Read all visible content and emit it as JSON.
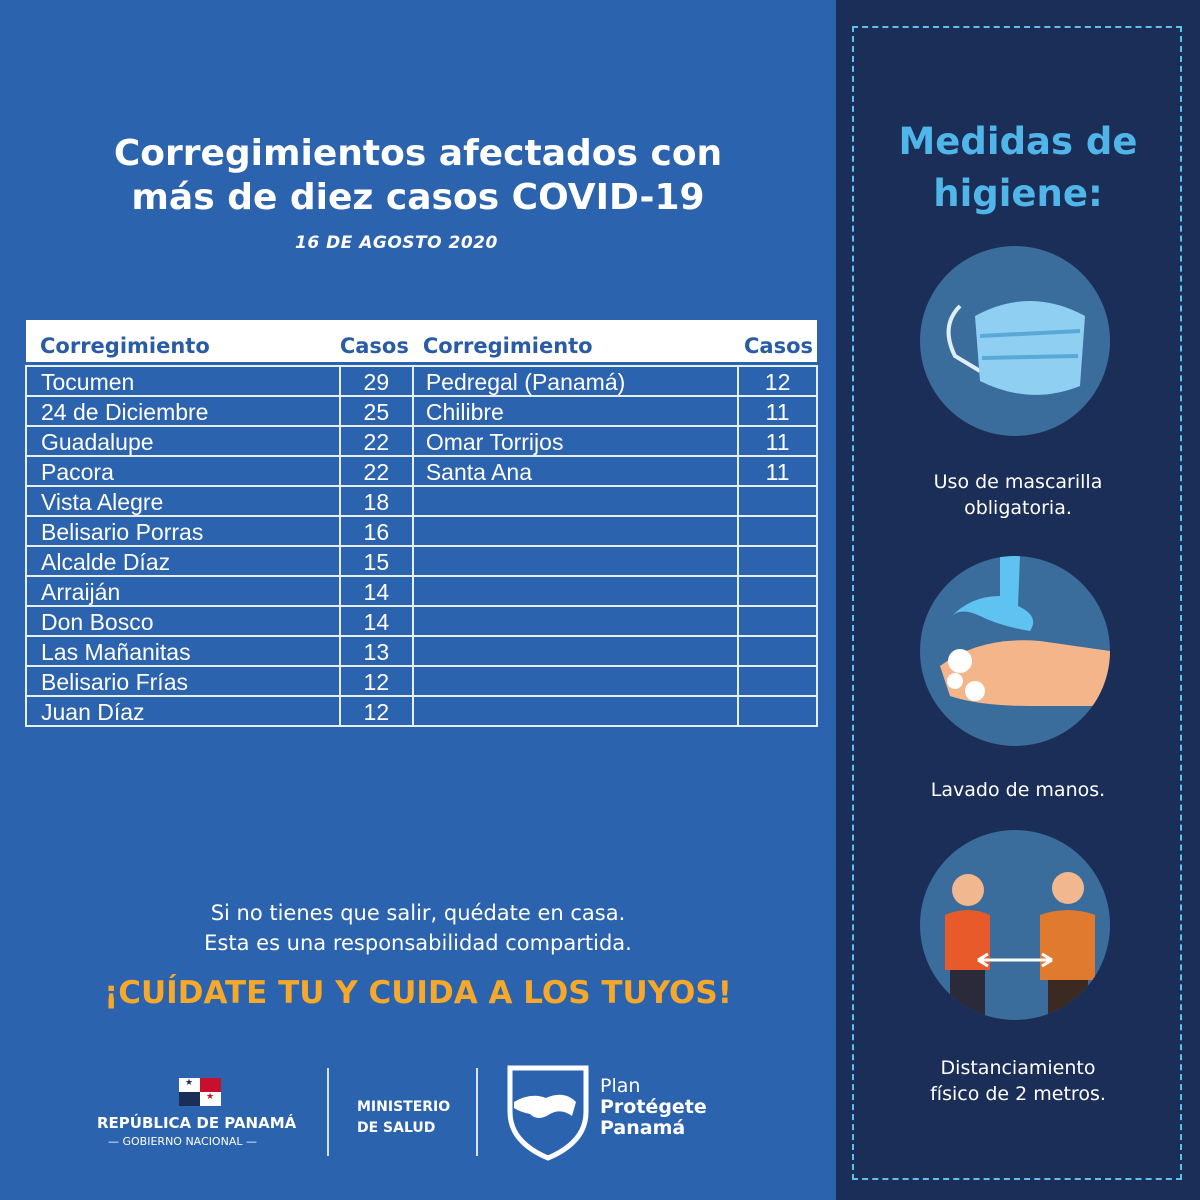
{
  "header": {
    "title_line1": "Corregimientos afectados con",
    "title_line2": "más de diez casos COVID-19",
    "date": "16 DE  AGOSTO  2020"
  },
  "table": {
    "headers": [
      "Corregimiento",
      "Casos",
      "Corregimiento",
      "Casos"
    ],
    "rows": [
      [
        "Tocumen",
        "29",
        "Pedregal (Panamá)",
        "12"
      ],
      [
        "24 de Diciembre",
        "25",
        "Chilibre",
        "11"
      ],
      [
        "Guadalupe",
        "22",
        "Omar Torrijos",
        "11"
      ],
      [
        "Pacora",
        "22",
        "Santa Ana",
        "11"
      ],
      [
        "Vista Alegre",
        "18",
        "",
        ""
      ],
      [
        "Belisario Porras",
        "16",
        "",
        ""
      ],
      [
        "Alcalde Díaz",
        "15",
        "",
        ""
      ],
      [
        "Arraiján",
        "14",
        "",
        ""
      ],
      [
        "Don Bosco",
        "14",
        "",
        ""
      ],
      [
        "Las Mañanitas",
        "13",
        "",
        ""
      ],
      [
        "Belisario Frías",
        "12",
        "",
        ""
      ],
      [
        "Juan Díaz",
        "12",
        "",
        ""
      ]
    ]
  },
  "message": {
    "line1": "Si no tienes que salir, quédate en casa.",
    "line2": "Esta es una responsabilidad compartida.",
    "slogan": "¡CUÍDATE TU Y CUIDA A LOS TUYOS!"
  },
  "footer": {
    "republica": "REPÚBLICA DE PANAMÁ",
    "gobierno": "GOBIERNO NACIONAL",
    "ministerio1": "MINISTERIO",
    "ministerio2": "DE SALUD",
    "plan": "Plan",
    "plan2": "Protégete",
    "plan3": "Panamá"
  },
  "sidebar": {
    "title_line1": "Medidas de",
    "title_line2": "higiene:",
    "items": [
      {
        "icon": "face-mask-icon",
        "line1": "Uso de mascarilla",
        "line2": "obligatoria."
      },
      {
        "icon": "hand-washing-icon",
        "line1": "Lavado de manos.",
        "line2": ""
      },
      {
        "icon": "social-distancing-icon",
        "line1": "Distanciamiento",
        "line2": "físico de 2 metros."
      }
    ]
  },
  "colors": {
    "background": "#2c63ae",
    "sidebar": "#1b2e58",
    "accent": "#50b5e9",
    "slogan": "#f6a82b"
  }
}
